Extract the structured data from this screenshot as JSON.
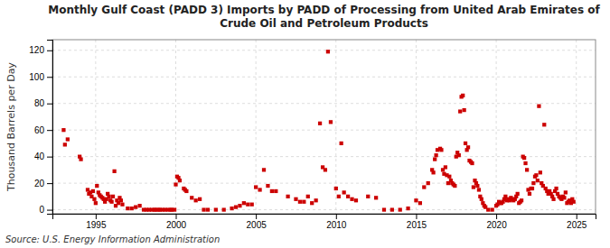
{
  "chart_data": {
    "type": "scatter",
    "title": "Monthly Gulf Coast (PADD 3) Imports by PADD of Processing from United Arab Emirates of\nCrude Oil and Petroleum Products",
    "ylabel": "Thousand Barrels per Day",
    "annotations": [
      "Source: U.S. Energy Information Administration"
    ],
    "color": "#cc0000",
    "marker": "square",
    "grid": true,
    "xlim": [
      1992.3,
      2026.2
    ],
    "xticks": [
      1995,
      2000,
      2005,
      2010,
      2015,
      2020,
      2025
    ],
    "ylim": [
      -3,
      128
    ],
    "yticks": [
      0,
      20,
      40,
      60,
      80,
      100,
      120
    ],
    "x": [
      1993.0,
      1993.08,
      1993.25,
      1994.0,
      1994.08,
      1994.5,
      1994.58,
      1994.67,
      1994.75,
      1994.83,
      1994.92,
      1995.0,
      1995.08,
      1995.17,
      1995.25,
      1995.33,
      1995.42,
      1995.5,
      1995.58,
      1995.67,
      1995.75,
      1995.83,
      1995.92,
      1996.0,
      1996.08,
      1996.17,
      1996.25,
      1996.33,
      1996.42,
      1996.5,
      1996.58,
      1996.67,
      1997.0,
      1997.25,
      1997.5,
      1997.75,
      1998.0,
      1998.17,
      1998.33,
      1998.5,
      1998.67,
      1998.75,
      1998.92,
      1999.0,
      1999.17,
      1999.33,
      1999.5,
      1999.67,
      1999.75,
      1999.92,
      2000.0,
      2000.08,
      2000.17,
      2000.25,
      2000.5,
      2000.58,
      2000.67,
      2001.0,
      2001.25,
      2001.5,
      2001.75,
      2002.0,
      2002.5,
      2003.0,
      2003.5,
      2003.75,
      2004.0,
      2004.25,
      2004.5,
      2004.75,
      2005.0,
      2005.25,
      2005.5,
      2005.75,
      2006.0,
      2006.25,
      2007.0,
      2007.5,
      2007.75,
      2008.0,
      2008.25,
      2008.5,
      2008.75,
      2009.0,
      2009.17,
      2009.33,
      2009.5,
      2009.67,
      2010.0,
      2010.17,
      2010.33,
      2010.5,
      2010.75,
      2011.0,
      2011.25,
      2012.0,
      2012.5,
      2013.0,
      2013.5,
      2014.0,
      2014.5,
      2015.0,
      2015.25,
      2015.5,
      2015.75,
      2016.0,
      2016.08,
      2016.17,
      2016.25,
      2016.33,
      2016.5,
      2016.58,
      2016.67,
      2016.75,
      2016.83,
      2016.92,
      2017.0,
      2017.08,
      2017.17,
      2017.25,
      2017.33,
      2017.42,
      2017.5,
      2017.58,
      2017.67,
      2017.75,
      2017.83,
      2017.92,
      2018.0,
      2018.08,
      2018.17,
      2018.25,
      2018.33,
      2018.42,
      2018.5,
      2018.58,
      2018.67,
      2018.75,
      2018.83,
      2018.92,
      2019.0,
      2019.08,
      2019.17,
      2019.25,
      2019.33,
      2019.5,
      2019.75,
      2020.0,
      2020.08,
      2020.17,
      2020.25,
      2020.33,
      2020.42,
      2020.5,
      2020.58,
      2020.67,
      2020.75,
      2020.83,
      2020.92,
      2021.0,
      2021.08,
      2021.17,
      2021.25,
      2021.33,
      2021.42,
      2021.5,
      2021.58,
      2021.67,
      2021.75,
      2021.83,
      2021.92,
      2022.0,
      2022.08,
      2022.17,
      2022.25,
      2022.33,
      2022.42,
      2022.5,
      2022.58,
      2022.67,
      2022.75,
      2022.83,
      2022.92,
      2023.0,
      2023.08,
      2023.17,
      2023.25,
      2023.33,
      2023.42,
      2023.5,
      2023.58,
      2023.67,
      2023.75,
      2023.83,
      2023.92,
      2024.0,
      2024.08,
      2024.17,
      2024.25,
      2024.33,
      2024.42,
      2024.5,
      2024.58,
      2024.67,
      2024.75,
      2024.83
    ],
    "values": [
      60,
      49,
      53,
      40,
      38,
      15,
      12,
      13,
      10,
      14,
      8,
      5,
      18,
      13,
      11,
      10,
      9,
      8,
      6,
      8,
      12,
      10,
      7,
      6,
      10,
      29,
      3,
      7,
      5,
      9,
      7,
      4,
      1,
      1,
      2,
      3,
      0,
      0,
      0,
      0,
      0,
      0,
      0,
      0,
      0,
      0,
      0,
      0,
      0,
      0,
      19,
      25,
      24,
      22,
      16,
      15,
      14,
      9,
      7,
      8,
      0,
      0,
      0,
      0,
      1,
      2,
      3,
      5,
      4,
      4,
      17,
      15,
      30,
      18,
      14,
      14,
      10,
      8,
      6,
      6,
      10,
      5,
      7,
      65,
      32,
      30,
      119,
      66,
      16,
      10,
      50,
      13,
      10,
      8,
      7,
      10,
      9,
      0,
      0,
      0,
      1,
      7,
      5,
      17,
      20,
      30,
      28,
      38,
      41,
      45,
      46,
      45,
      30,
      27,
      32,
      26,
      20,
      25,
      22,
      20,
      19,
      18,
      40,
      43,
      41,
      74,
      85,
      86,
      75,
      50,
      45,
      47,
      37,
      36,
      35,
      17,
      22,
      20,
      18,
      15,
      10,
      8,
      5,
      3,
      2,
      0,
      0,
      3,
      4,
      6,
      5,
      5,
      6,
      8,
      10,
      7,
      8,
      7,
      9,
      8,
      7,
      8,
      10,
      12,
      5,
      6,
      7,
      40,
      39,
      35,
      30,
      15,
      12,
      16,
      16,
      20,
      25,
      26,
      22,
      78,
      28,
      20,
      18,
      64,
      16,
      14,
      12,
      14,
      12,
      10,
      8,
      14,
      16,
      12,
      10,
      9,
      8,
      10,
      9,
      13,
      5,
      6,
      7,
      5,
      8,
      6
    ]
  }
}
